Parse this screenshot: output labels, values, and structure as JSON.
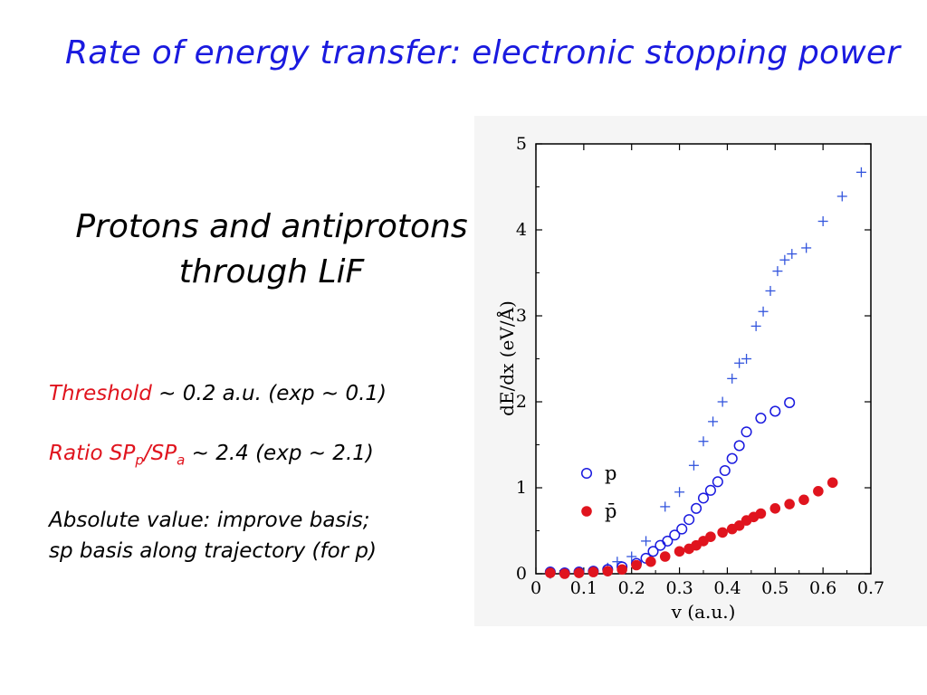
{
  "slide": {
    "title": "Rate of energy transfer: electronic stopping power",
    "subtitle_line1": "Protons and antiprotons",
    "subtitle_line2": "through LiF"
  },
  "notes": {
    "threshold_label": "Threshold",
    "threshold_text": " ~ 0.2 a.u. (exp ~ 0.1)",
    "ratio_label_sp": "Ratio SP",
    "ratio_sub_p": "p",
    "ratio_slash": "/SP",
    "ratio_sub_a": "a",
    "ratio_text": " ~ 2.4 (exp ~ 2.1)",
    "absolute_line1": "Absolute value: improve basis;",
    "absolute_line2": "sp basis along trajectory (for p)"
  },
  "colors": {
    "title": "#1a1adf",
    "highlight": "#e0141e",
    "proton": "#1a1adf",
    "antiproton": "#e0141e",
    "plus_series": "#3355dd"
  },
  "chart_data": {
    "type": "scatter",
    "xlabel": "v (a.u.)",
    "ylabel": "dE/dx (eV/Å)",
    "xlim": [
      0,
      0.7
    ],
    "ylim": [
      0,
      5
    ],
    "xticks": [
      "0",
      "0.1",
      "0.2",
      "0.3",
      "0.4",
      "0.5",
      "0.6",
      "0.7"
    ],
    "yticks": [
      "0",
      "1",
      "2",
      "3",
      "4",
      "5"
    ],
    "legend_position": "lower-left",
    "series": [
      {
        "marker": "plus",
        "points": [
          [
            0.03,
            0.0
          ],
          [
            0.06,
            0.01
          ],
          [
            0.09,
            0.02
          ],
          [
            0.12,
            0.03
          ],
          [
            0.15,
            0.07
          ],
          [
            0.17,
            0.14
          ],
          [
            0.2,
            0.2
          ],
          [
            0.23,
            0.38
          ],
          [
            0.27,
            0.78
          ],
          [
            0.3,
            0.95
          ],
          [
            0.33,
            1.26
          ],
          [
            0.35,
            1.54
          ],
          [
            0.37,
            1.77
          ],
          [
            0.39,
            2.0
          ],
          [
            0.41,
            2.27
          ],
          [
            0.425,
            2.45
          ],
          [
            0.44,
            2.5
          ],
          [
            0.46,
            2.88
          ],
          [
            0.475,
            3.05
          ],
          [
            0.49,
            3.29
          ],
          [
            0.505,
            3.52
          ],
          [
            0.52,
            3.65
          ],
          [
            0.535,
            3.72
          ],
          [
            0.565,
            3.79
          ],
          [
            0.6,
            4.1
          ],
          [
            0.64,
            4.39
          ],
          [
            0.68,
            4.67
          ]
        ]
      },
      {
        "name": "p",
        "marker": "open-circle",
        "points": [
          [
            0.03,
            0.02
          ],
          [
            0.06,
            0.01
          ],
          [
            0.09,
            0.02
          ],
          [
            0.12,
            0.03
          ],
          [
            0.15,
            0.05
          ],
          [
            0.18,
            0.08
          ],
          [
            0.21,
            0.12
          ],
          [
            0.23,
            0.18
          ],
          [
            0.245,
            0.26
          ],
          [
            0.26,
            0.33
          ],
          [
            0.275,
            0.38
          ],
          [
            0.29,
            0.45
          ],
          [
            0.305,
            0.52
          ],
          [
            0.32,
            0.63
          ],
          [
            0.335,
            0.76
          ],
          [
            0.35,
            0.88
          ],
          [
            0.365,
            0.97
          ],
          [
            0.38,
            1.07
          ],
          [
            0.395,
            1.2
          ],
          [
            0.41,
            1.34
          ],
          [
            0.425,
            1.49
          ],
          [
            0.44,
            1.65
          ],
          [
            0.47,
            1.81
          ],
          [
            0.5,
            1.89
          ],
          [
            0.53,
            1.99
          ]
        ]
      },
      {
        "name": "p̄",
        "marker": "filled-circle",
        "points": [
          [
            0.03,
            0.01
          ],
          [
            0.06,
            0.0
          ],
          [
            0.09,
            0.01
          ],
          [
            0.12,
            0.02
          ],
          [
            0.15,
            0.03
          ],
          [
            0.18,
            0.05
          ],
          [
            0.21,
            0.1
          ],
          [
            0.24,
            0.14
          ],
          [
            0.27,
            0.2
          ],
          [
            0.3,
            0.26
          ],
          [
            0.32,
            0.29
          ],
          [
            0.335,
            0.33
          ],
          [
            0.35,
            0.38
          ],
          [
            0.365,
            0.43
          ],
          [
            0.39,
            0.48
          ],
          [
            0.41,
            0.52
          ],
          [
            0.425,
            0.56
          ],
          [
            0.44,
            0.62
          ],
          [
            0.455,
            0.66
          ],
          [
            0.47,
            0.7
          ],
          [
            0.5,
            0.76
          ],
          [
            0.53,
            0.81
          ],
          [
            0.56,
            0.86
          ],
          [
            0.59,
            0.96
          ],
          [
            0.62,
            1.06
          ]
        ]
      }
    ]
  }
}
